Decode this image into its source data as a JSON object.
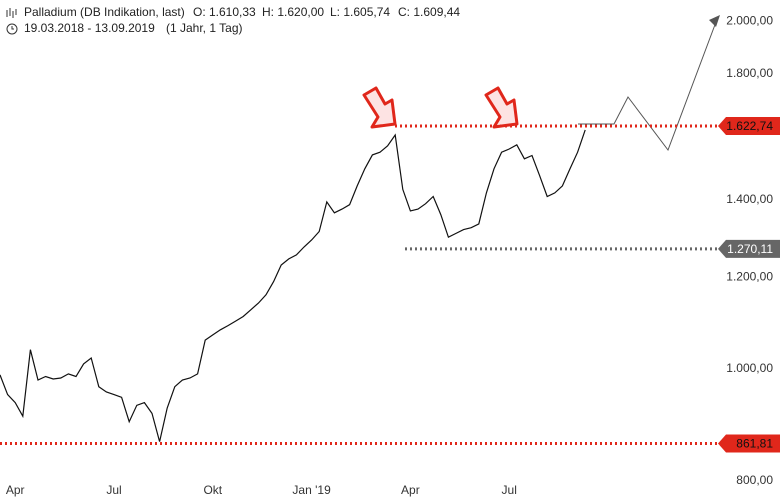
{
  "chart_data": {
    "type": "line",
    "title": "Palladium (DB Indikation, last)",
    "ohlc_labels": [
      "O: 1.610,33",
      "H: 1.620,00",
      "L: 1.605,74",
      "C: 1.609,44"
    ],
    "period": "19.03.2018 - 13.09.2019",
    "interval": "(1 Jahr, 1 Tag)",
    "log_scale": true,
    "color": "#111111",
    "categories": [
      null,
      null,
      "Apr",
      null,
      null,
      null,
      null,
      null,
      null,
      null,
      null,
      null,
      null,
      null,
      null,
      "Jul",
      null,
      null,
      null,
      null,
      null,
      null,
      null,
      null,
      null,
      null,
      null,
      null,
      "Okt",
      null,
      null,
      null,
      null,
      null,
      null,
      null,
      null,
      null,
      null,
      null,
      null,
      "Jan '19",
      null,
      null,
      null,
      null,
      null,
      null,
      null,
      null,
      null,
      null,
      null,
      null,
      "Apr",
      null,
      null,
      null,
      null,
      null,
      null,
      null,
      null,
      null,
      null,
      null,
      null,
      "Jul",
      null,
      null,
      null,
      null,
      null,
      null,
      null,
      null,
      null,
      null
    ],
    "values": [
      988,
      950,
      935,
      910,
      1039,
      978,
      985,
      980,
      982,
      990,
      985,
      1010,
      1022,
      965,
      955,
      950,
      945,
      900,
      930,
      935,
      915,
      865,
      925,
      965,
      978,
      982,
      990,
      1059,
      1070,
      1081,
      1090,
      1100,
      1110,
      1125,
      1140,
      1159,
      1190,
      1230,
      1245,
      1255,
      1275,
      1293,
      1315,
      1395,
      1365,
      1375,
      1387,
      1440,
      1490,
      1532,
      1540,
      1560,
      1594,
      1430,
      1370,
      1375,
      1390,
      1410,
      1360,
      1300,
      1310,
      1320,
      1325,
      1335,
      1420,
      1490,
      1540,
      1550,
      1563,
      1520,
      1530,
      1470,
      1410,
      1420,
      1440,
      1490,
      1540,
      1610
    ],
    "ylim": [
      770,
      2086
    ],
    "yticks": [
      {
        "value": 800,
        "label": "800,00"
      },
      {
        "value": 1000,
        "label": "1.000,00"
      },
      {
        "value": 1200,
        "label": "1.200,00"
      },
      {
        "value": 1400,
        "label": "1.400,00"
      },
      {
        "value": 1800,
        "label": "1.800,00"
      },
      {
        "value": 2000,
        "label": "2.000,00"
      }
    ],
    "levels": [
      {
        "value": 1622.74,
        "label": "1.622,74",
        "color": "#e0271b"
      },
      {
        "value": 1270.11,
        "label": "1.270,11",
        "color": "#666666"
      },
      {
        "value": 861.81,
        "label": "861,81",
        "color": "#e0271b"
      }
    ]
  }
}
